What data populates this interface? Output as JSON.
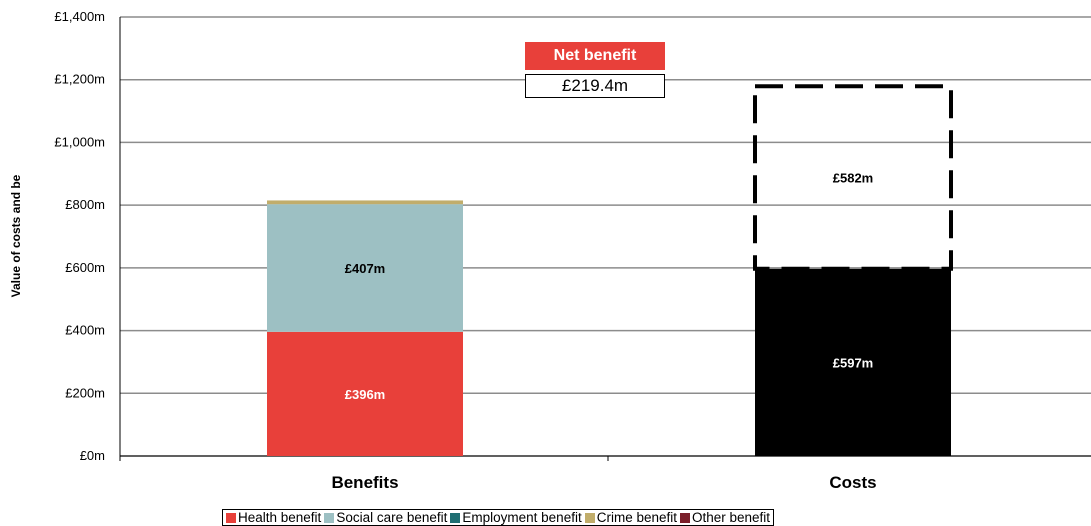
{
  "chart_data": {
    "type": "bar",
    "stacked": true,
    "categories": [
      "Benefits",
      "Costs"
    ],
    "ylabel": "Value of costs and be",
    "ylim": [
      0,
      1400
    ],
    "yticks": [
      0,
      200,
      400,
      600,
      800,
      1000,
      1200,
      1400
    ],
    "ytick_labels": [
      "£0m",
      "£200m",
      "£400m",
      "£600m",
      "£800m",
      "£1,000m",
      "£1,200m",
      "£1,400m"
    ],
    "grid": true,
    "series": [
      {
        "name": "Health benefit",
        "color": "#e8403a",
        "values": [
          396,
          0
        ],
        "label": "£396m",
        "label_color": "#ffffff"
      },
      {
        "name": "Social care benefit",
        "color": "#9dc0c3",
        "values": [
          407,
          0
        ],
        "label": "£407m",
        "label_color": "#000000"
      },
      {
        "name": "Employment benefit",
        "color": "#1f6f73",
        "values": [
          0,
          0
        ]
      },
      {
        "name": "Crime benefit",
        "color": "#c1ad6b",
        "values": [
          12,
          0
        ]
      },
      {
        "name": "Other benefit",
        "color": "#7b1f2a",
        "values": [
          0,
          0
        ]
      },
      {
        "values": [
          0,
          597
        ],
        "color": "#000000",
        "label": "£597m",
        "label_color": "#ffffff"
      },
      {
        "values": [
          0,
          582
        ],
        "color": "none",
        "dashed": true,
        "label": "£582m",
        "label_color": "#000000"
      }
    ],
    "annotation": {
      "title": "Net benefit",
      "value": "£219.4m"
    },
    "legend_position": "bottom",
    "legend": [
      "Health benefit",
      "Social care benefit",
      "Employment benefit",
      "Crime benefit",
      "Other benefit"
    ]
  }
}
